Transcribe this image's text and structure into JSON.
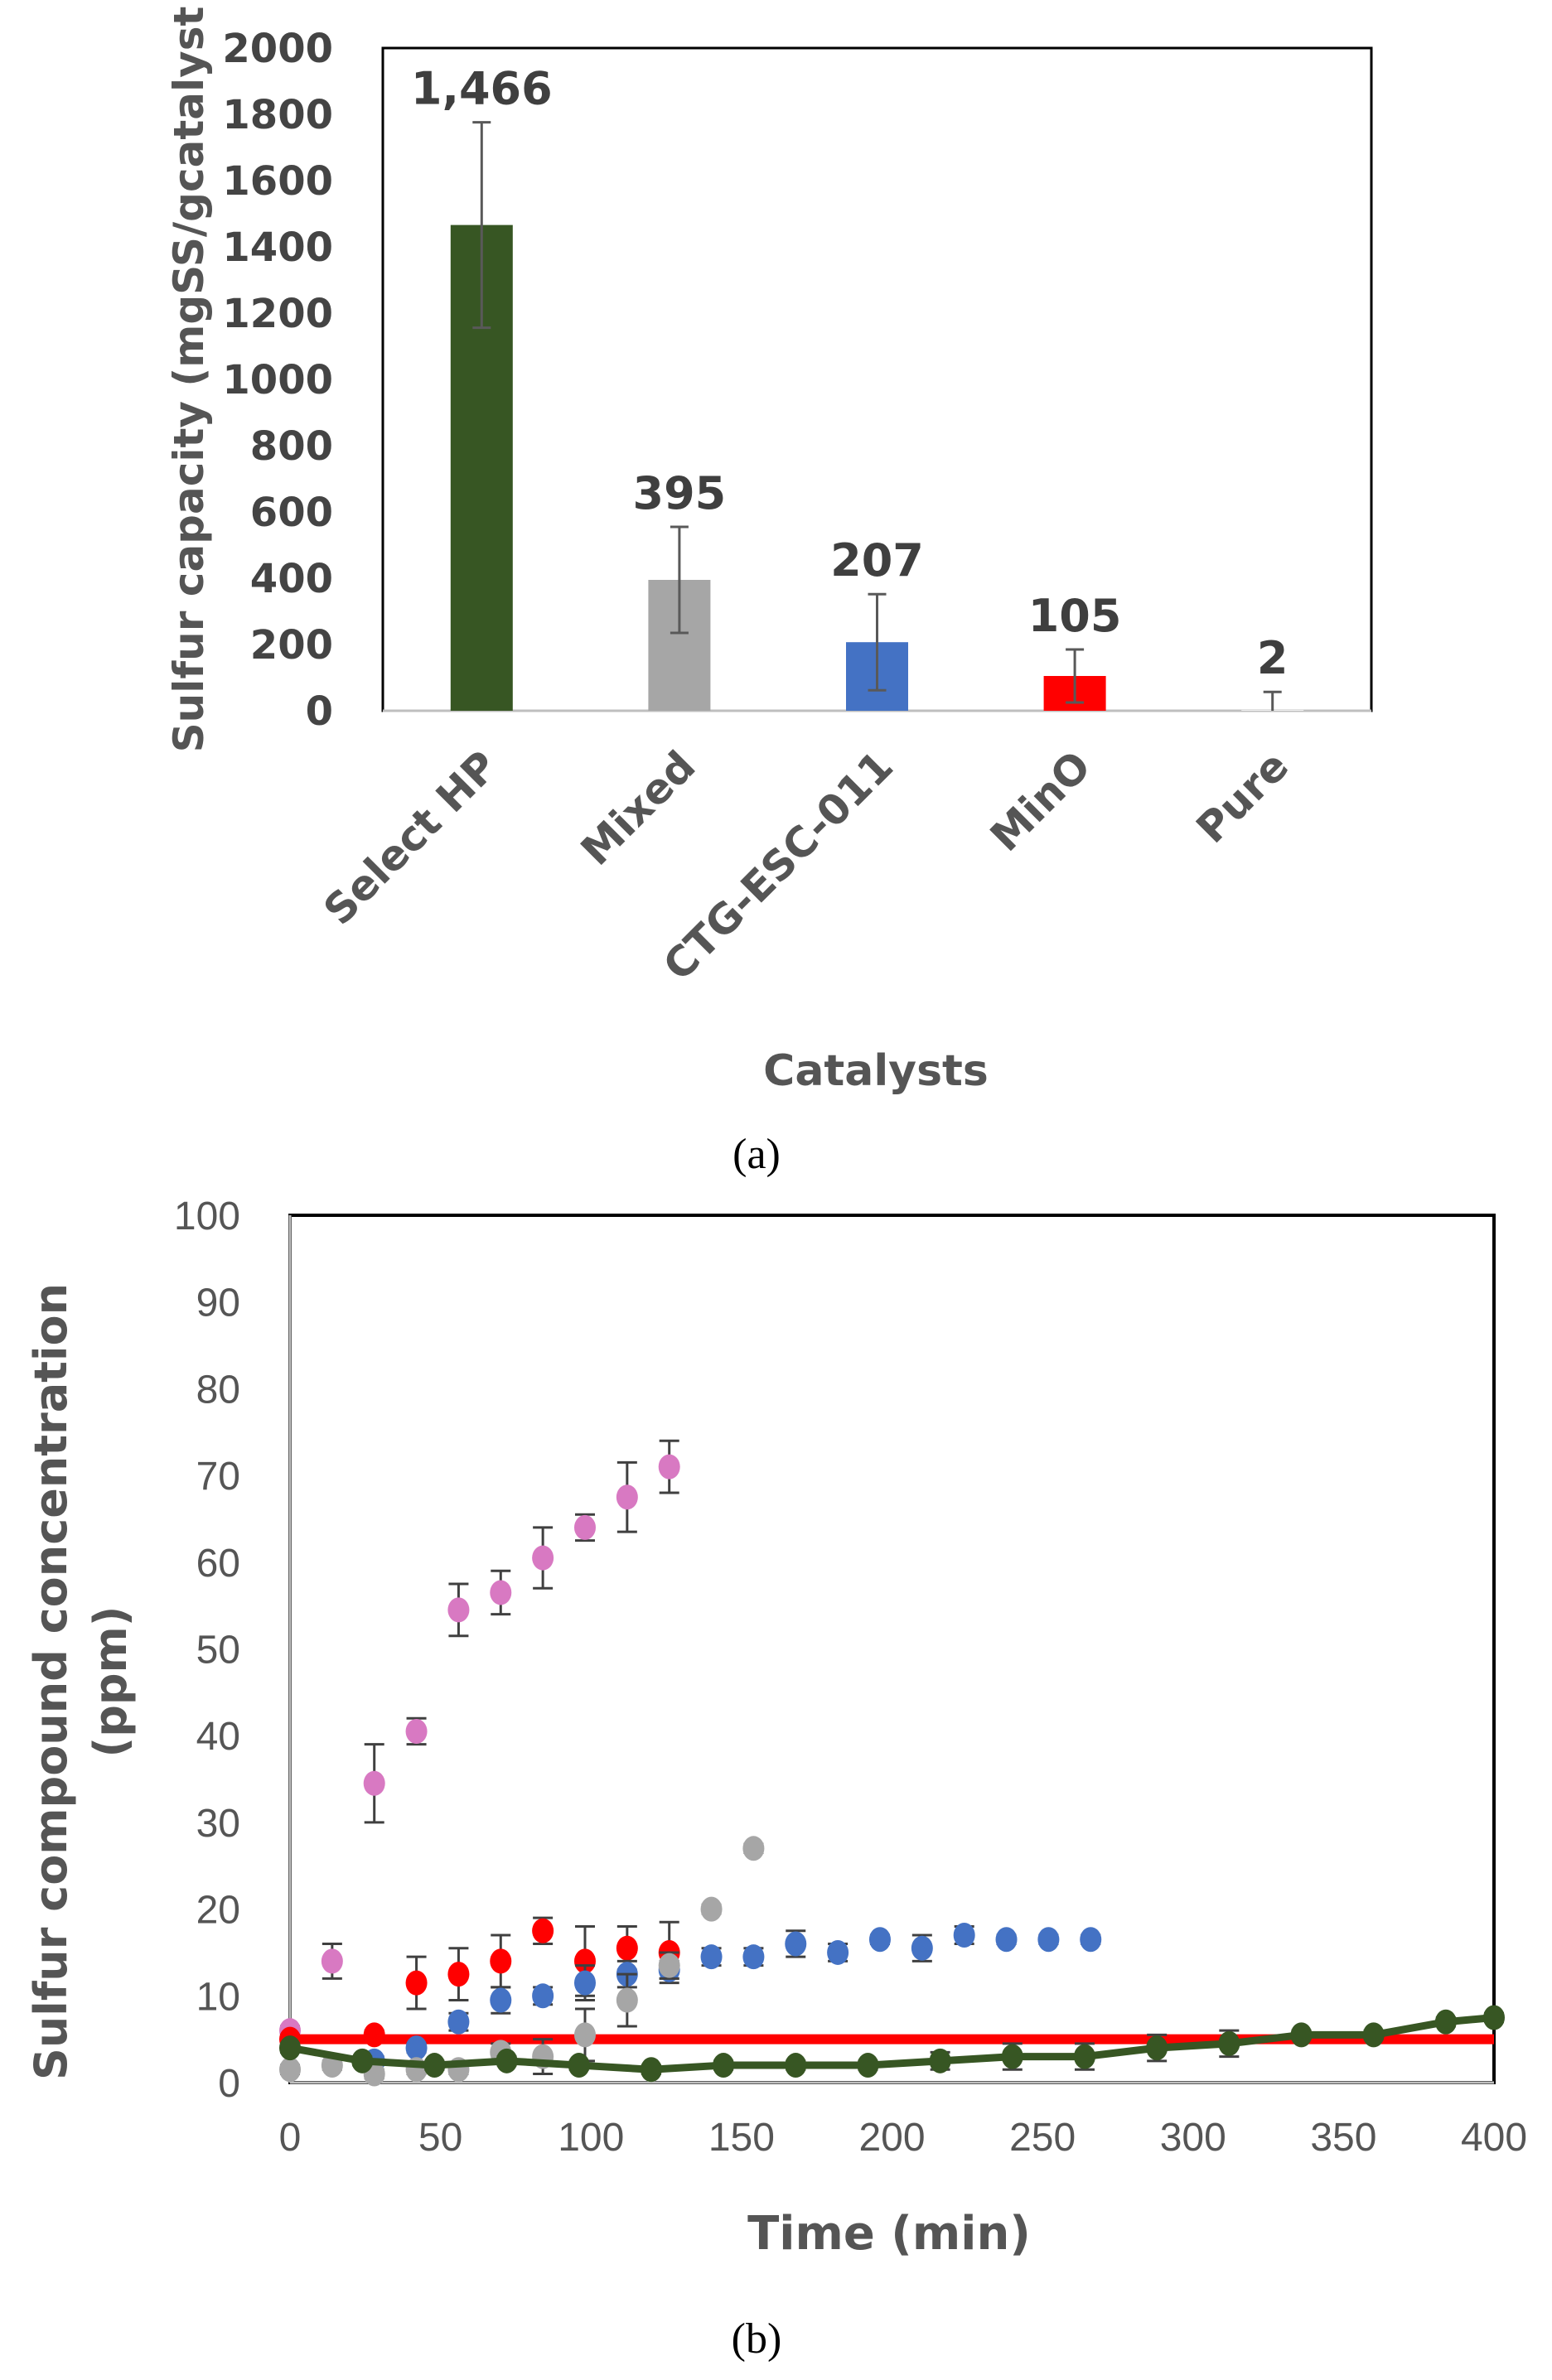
{
  "chart_data": [
    {
      "type": "bar",
      "panel": "(a)",
      "categories": [
        "Select HP",
        "Mixed",
        "CTG-ESC-011",
        "MinO",
        "Pure"
      ],
      "values": [
        1466,
        395,
        207,
        105,
        2
      ],
      "data_labels": [
        "1,466",
        "395",
        "207",
        "105",
        "2"
      ],
      "errors": [
        310,
        160,
        145,
        80,
        55
      ],
      "colors": [
        "#375623",
        "#a6a6a6",
        "#4472c4",
        "#ff0000",
        "#ffffff"
      ],
      "xlabel": "Catalysts",
      "ylabel": "Sulfur capacity (mgSS/gcatalyst",
      "ylim": [
        0,
        2000
      ],
      "yticks": [
        "0",
        "200",
        "400",
        "600",
        "800",
        "1000",
        "1200",
        "1400",
        "1600",
        "1800",
        "2000"
      ]
    },
    {
      "type": "scatter",
      "panel": "(b)",
      "xlabel": "Time (min)",
      "ylabel_line1": "Sulfur compound concentration",
      "ylabel_line2": "(ppm)",
      "xlim": [
        0,
        400
      ],
      "ylim": [
        0,
        100
      ],
      "xticks": [
        "0",
        "50",
        "100",
        "150",
        "200",
        "250",
        "300",
        "350",
        "400"
      ],
      "yticks": [
        "0",
        "10",
        "20",
        "30",
        "40",
        "50",
        "60",
        "70",
        "80",
        "90",
        "100"
      ],
      "threshold": {
        "value": 5,
        "color": "#ff0000"
      },
      "series": [
        {
          "name": "pink",
          "color": "#d879c2",
          "x": [
            0,
            14,
            28,
            42,
            56,
            70,
            84,
            98,
            112,
            126
          ],
          "y": [
            6,
            14,
            34.5,
            40.5,
            54.5,
            56.5,
            60.5,
            64,
            67.5,
            71
          ],
          "err": [
            0.5,
            2,
            4.5,
            1.5,
            3,
            2.5,
            3.5,
            1.5,
            4,
            3
          ]
        },
        {
          "name": "red",
          "color": "#ff0000",
          "x": [
            0,
            28,
            42,
            56,
            70,
            84,
            98,
            112,
            126
          ],
          "y": [
            5,
            5.5,
            11.5,
            12.5,
            14,
            17.5,
            14,
            15.5,
            15
          ],
          "err": [
            0.5,
            0.5,
            3,
            3,
            3,
            1.5,
            4,
            2.5,
            3.5
          ]
        },
        {
          "name": "blue",
          "color": "#4472c4",
          "x": [
            28,
            42,
            56,
            70,
            84,
            98,
            112,
            126,
            140,
            154,
            168,
            182,
            196,
            210,
            224,
            238,
            252,
            266
          ],
          "y": [
            2.5,
            4,
            7,
            9.5,
            10,
            11.5,
            12.5,
            13,
            14.5,
            14.5,
            16,
            15,
            16.5,
            15.5,
            17,
            16.5,
            16.5,
            16.5
          ],
          "err": [
            0.5,
            0.5,
            1,
            1.5,
            1,
            2,
            1.5,
            1,
            1,
            1,
            1.5,
            1,
            0.5,
            1.5,
            1,
            0.5,
            0.5,
            0.5
          ]
        },
        {
          "name": "gray",
          "color": "#a6a6a6",
          "x": [
            0,
            14,
            28,
            42,
            56,
            70,
            84,
            98,
            112,
            126,
            140,
            154
          ],
          "y": [
            1.5,
            2,
            1,
            1.5,
            1.5,
            3.5,
            3,
            5.5,
            9.5,
            13.5,
            20,
            27
          ],
          "err": [
            0.5,
            0.5,
            0.5,
            0.5,
            0.5,
            1,
            2,
            3,
            3,
            1.5,
            0.5,
            0.5
          ]
        },
        {
          "name": "green",
          "color": "#375623",
          "line": true,
          "x": [
            0,
            24,
            48,
            72,
            96,
            120,
            144,
            168,
            192,
            216,
            240,
            264,
            288,
            312,
            336,
            360,
            384,
            400
          ],
          "y": [
            4,
            2.5,
            2,
            2.5,
            2,
            1.5,
            2,
            2,
            2,
            2.5,
            3,
            3,
            4,
            4.5,
            5.5,
            5.5,
            7,
            7.5
          ],
          "err": [
            0.5,
            0.5,
            0.5,
            0.5,
            0.5,
            0.5,
            0.5,
            0.5,
            0.5,
            1,
            1.5,
            1.5,
            1.5,
            1.5,
            0.5,
            0.5,
            0.5,
            0.5
          ]
        }
      ]
    }
  ]
}
